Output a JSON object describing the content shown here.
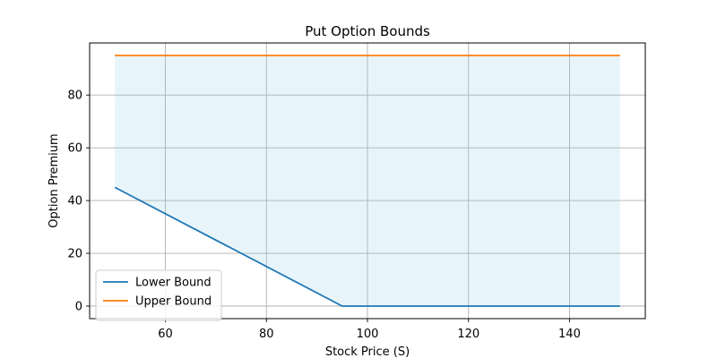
{
  "chart_data": {
    "type": "line",
    "title": "Put Option Bounds",
    "xlabel": "Stock Price (S)",
    "ylabel": "Option Premium",
    "xlim": [
      45,
      155
    ],
    "ylim": [
      -4.75,
      99.75
    ],
    "xticks": [
      60,
      80,
      100,
      120,
      140
    ],
    "yticks": [
      0,
      20,
      40,
      60,
      80
    ],
    "grid": true,
    "legend_position": "lower-left",
    "series": [
      {
        "name": "Lower Bound",
        "color": "#1f77b4",
        "x": [
          50,
          95,
          150
        ],
        "y": [
          45,
          0,
          0
        ]
      },
      {
        "name": "Upper Bound",
        "color": "#ff7f0e",
        "x": [
          50,
          150
        ],
        "y": [
          95,
          95
        ]
      }
    ],
    "fill_between": {
      "color": "#87ceeb",
      "opacity": 0.2,
      "lower_series": "Lower Bound",
      "upper_series": "Upper Bound"
    }
  }
}
